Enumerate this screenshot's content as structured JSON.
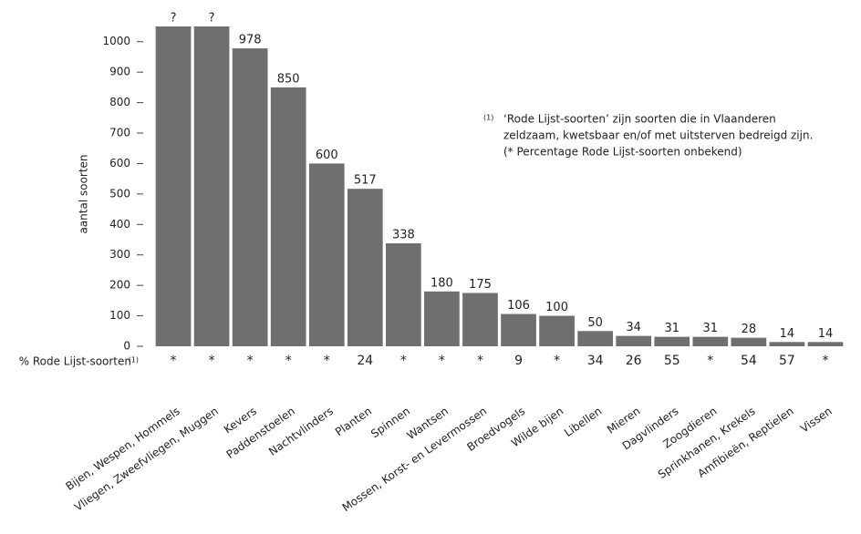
{
  "chart_data": {
    "type": "bar",
    "y_label": "aantal soorten",
    "categories": [
      "Bijen, Wespen, Hommels",
      "Vliegen, Zweefvliegen, Muggen",
      "Kevers",
      "Paddenstoelen",
      "Nachtvlinders",
      "Planten",
      "Spinnen",
      "Wantsen",
      "Mossen, Korst- en Levermossen",
      "Broedvogels",
      "Wilde bijen",
      "Libellen",
      "Mieren",
      "Dagvlinders",
      "Zoogdieren",
      "Sprinkhanen, Krekels",
      "Amfibieën, Reptielen",
      "Vissen"
    ],
    "values": [
      1050,
      1050,
      978,
      850,
      600,
      517,
      338,
      180,
      175,
      106,
      100,
      50,
      34,
      31,
      31,
      28,
      14,
      14
    ],
    "value_labels": [
      "?",
      "?",
      "978",
      "850",
      "600",
      "517",
      "338",
      "180",
      "175",
      "106",
      "100",
      "50",
      "34",
      "31",
      "31",
      "28",
      "14",
      "14"
    ],
    "color": "#6f6f6f",
    "ylim": [
      0,
      1080
    ],
    "yticks": [
      0,
      100,
      200,
      300,
      400,
      500,
      600,
      700,
      800,
      900,
      1000
    ],
    "row_label": "% Rode Lijst-soorten",
    "row_label_note": "(1)",
    "row_values": [
      "*",
      "*",
      "*",
      "*",
      "*",
      24,
      "*",
      "*",
      "*",
      9,
      "*",
      34,
      26,
      55,
      "*",
      54,
      57,
      "*"
    ],
    "footnote": {
      "marker": "(1)",
      "lines": [
        "‘Rode Lijst-soorten’ zijn soorten die in Vlaanderen",
        "zeldzaam, kwetsbaar en/of met uitsterven bedreigd zijn.",
        "(* Percentage Rode Lijst-soorten onbekend)"
      ]
    }
  }
}
